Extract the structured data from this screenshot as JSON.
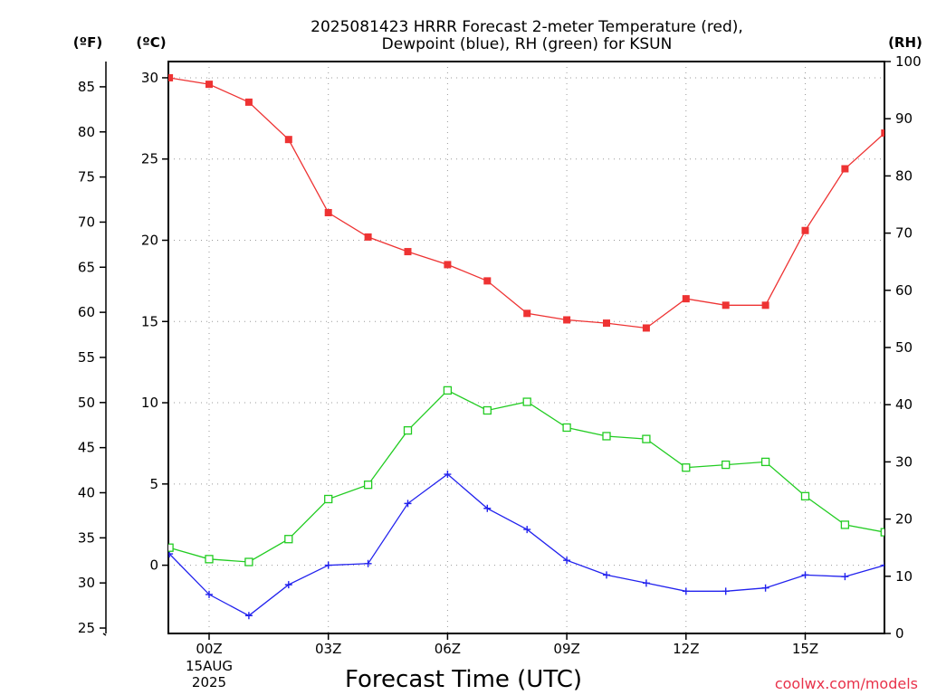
{
  "title_lines": [
    "2025081423 HRRR Forecast 2-meter Temperature (red),",
    "Dewpoint (blue), RH (green) for KSUN"
  ],
  "credit": "coolwx.com/models",
  "units": {
    "fahrenheit": "(ºF)",
    "celsius": "(ºC)",
    "rh": "(RH)"
  },
  "chart_data": {
    "type": "line",
    "title": "2025081423 HRRR Forecast 2-meter Temperature (red), Dewpoint (blue), RH (green) for KSUN",
    "xlabel": "Forecast Time (UTC)",
    "x": [
      "23Z",
      "00Z",
      "01Z",
      "02Z",
      "03Z",
      "04Z",
      "05Z",
      "06Z",
      "07Z",
      "08Z",
      "09Z",
      "10Z",
      "11Z",
      "12Z",
      "13Z",
      "14Z",
      "15Z",
      "16Z",
      "17Z"
    ],
    "x_ticks": [
      "00Z",
      "03Z",
      "06Z",
      "09Z",
      "12Z",
      "15Z"
    ],
    "x_date_label": [
      "15AUG",
      "2025"
    ],
    "xlim": [
      "22:00Z",
      "17Z"
    ],
    "series": [
      {
        "name": "2-meter Temperature (red)",
        "axis": "celsius",
        "color": "#ee3333",
        "marker": "filled-square",
        "values": [
          30.0,
          29.6,
          28.5,
          26.2,
          21.7,
          20.2,
          19.3,
          18.5,
          17.5,
          15.5,
          15.1,
          14.9,
          14.6,
          16.4,
          16.0,
          16.0,
          20.6,
          24.4,
          26.6
        ]
      },
      {
        "name": "Dewpoint (blue)",
        "axis": "celsius",
        "color": "#2222ee",
        "marker": "plus",
        "values": [
          0.7,
          -1.8,
          -3.1,
          -1.2,
          0.0,
          0.1,
          3.8,
          5.6,
          3.5,
          2.2,
          0.3,
          -0.6,
          -1.1,
          -1.6,
          -1.6,
          -1.4,
          -0.6,
          -0.7,
          0.0
        ]
      },
      {
        "name": "RH (green)",
        "axis": "rh",
        "color": "#22cc22",
        "marker": "open-square",
        "values": [
          15.0,
          13.0,
          12.5,
          16.5,
          23.5,
          26.0,
          35.5,
          42.5,
          39.0,
          40.5,
          36.0,
          34.5,
          34.0,
          29.0,
          29.5,
          30.0,
          24.0,
          19.0,
          17.7
        ]
      }
    ],
    "axes": {
      "celsius": {
        "label": "(ºC)",
        "ticks": [
          0,
          5,
          10,
          15,
          20,
          25,
          30
        ],
        "range": [
          -4.2,
          31.0
        ]
      },
      "fahrenheit": {
        "label": "(ºF)",
        "ticks": [
          25,
          30,
          35,
          40,
          45,
          50,
          55,
          60,
          65,
          70,
          75,
          80,
          85
        ],
        "range": [
          24.4,
          87.8
        ]
      },
      "rh": {
        "label": "(RH)",
        "ticks": [
          0,
          10,
          20,
          30,
          40,
          50,
          60,
          70,
          80,
          90,
          100
        ],
        "range": [
          0,
          100
        ]
      }
    },
    "grid": true,
    "legend": "none"
  }
}
